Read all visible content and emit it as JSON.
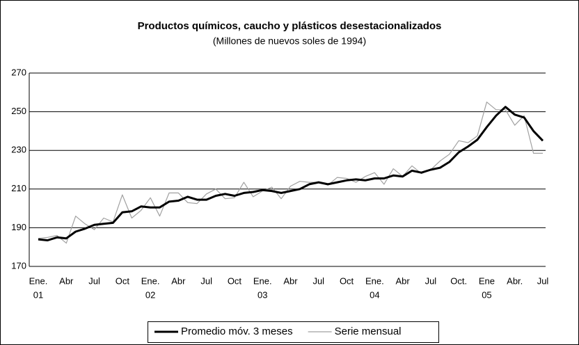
{
  "chart_data": {
    "type": "line",
    "title": "Productos químicos, caucho y plásticos desestacionalizados",
    "subtitle": "(Millones de nuevos soles de 1994)",
    "categories": [
      "Ene.",
      null,
      null,
      "Abr",
      null,
      null,
      "Jul",
      null,
      null,
      "Oct",
      null,
      null,
      "Ene.",
      null,
      null,
      "Abr",
      null,
      null,
      "Jul",
      null,
      null,
      "Oct",
      null,
      null,
      "Ene.",
      null,
      null,
      "Abr",
      null,
      null,
      "Jul",
      null,
      null,
      "Oct",
      null,
      null,
      "Ene.",
      null,
      null,
      "Abr",
      null,
      null,
      "Jul",
      null,
      null,
      "Oct.",
      null,
      null,
      "Ene",
      null,
      null,
      "Abr.",
      null,
      null,
      "Jul"
    ],
    "year_labels": [
      "01",
      "02",
      "03",
      "04",
      "05"
    ],
    "series": [
      {
        "name": "Promedio móv. 3 meses",
        "color": "#000000",
        "width": 3,
        "values": [
          184,
          183.5,
          185,
          184.5,
          188,
          189.5,
          191.5,
          192,
          192.5,
          198,
          198.5,
          201,
          200.5,
          200.5,
          203.5,
          204,
          206,
          204.5,
          204.5,
          206.5,
          207.5,
          206.5,
          208,
          208.5,
          209.5,
          209,
          208,
          209,
          210,
          212.5,
          213.5,
          212.5,
          213.5,
          214.5,
          215,
          214.5,
          215.5,
          215.5,
          217,
          216.5,
          219.5,
          218.5,
          220,
          221,
          224,
          229,
          232,
          235.5,
          242,
          248,
          252.5,
          248.5,
          247,
          240,
          235
        ]
      },
      {
        "name": "Serie mensual",
        "color": "#a0a0a0",
        "width": 1.2,
        "values": [
          184.5,
          185,
          186,
          182,
          196,
          192,
          189,
          195,
          193,
          207,
          195,
          199,
          205.5,
          196,
          208,
          208,
          203,
          202.5,
          207.5,
          210,
          205,
          205.5,
          213.5,
          206,
          209,
          211,
          205,
          211.5,
          214,
          213.5,
          213.5,
          212,
          216,
          215.5,
          213.5,
          216.5,
          218.5,
          212.5,
          220.5,
          216.5,
          222,
          218,
          220,
          224.5,
          228,
          235,
          234,
          237.5,
          255,
          251,
          251,
          243,
          248,
          228.5,
          228.5
        ]
      }
    ],
    "ylim": [
      170,
      270
    ],
    "yticks": [
      170,
      190,
      210,
      230,
      250,
      270
    ],
    "grid": true,
    "legend": "bottom"
  }
}
